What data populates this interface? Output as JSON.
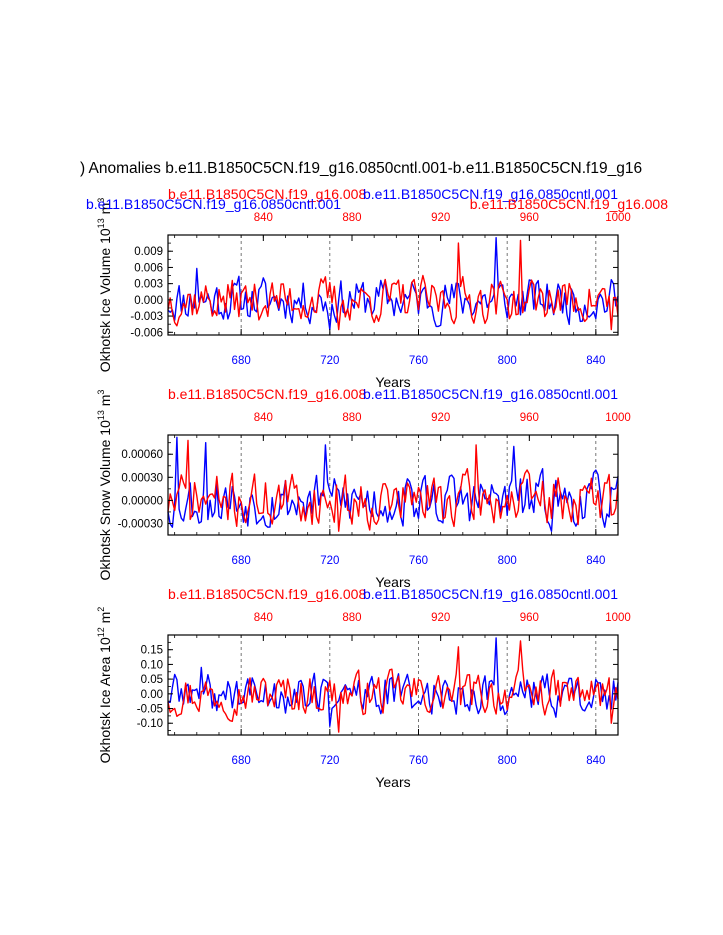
{
  "title": ") Anomalies b.e11.B1850C5CN.f19_g16.0850cntl.001-b.e11.B1850C5CN.f19_g16",
  "colors": {
    "control": "#0000ff",
    "experiment": "#ff0000",
    "axis": "#000000",
    "ref_line": "#555555"
  },
  "chart_data": [
    {
      "type": "line",
      "ylabel": "Okhotsk Ice Volume 10",
      "ylabel_exp": "13",
      "ylabel_unit": " m",
      "ylabel_unit_exp": "3",
      "xlabel": "Years",
      "top_left_label": "b.e11.B1850C5CN.f19_g16.008",
      "top_right_label": "b.e11.B1850C5CN.f19_g16.0850cntl.001",
      "left_label_blue": "b.e11.B1850C5CN.f19_g16.0850cntl.001",
      "right_label_red": "b.e11.B1850C5CN.f19_g16.008",
      "bottom_axis": {
        "range": [
          647,
          850
        ],
        "ticks": [
          "680",
          "720",
          "760",
          "800",
          "840"
        ],
        "tick_values": [
          680,
          720,
          760,
          800,
          840
        ]
      },
      "top_axis": {
        "range": [
          797,
          1000
        ],
        "ticks": [
          "840",
          "880",
          "920",
          "960",
          "1000"
        ],
        "tick_values": [
          840,
          880,
          920,
          960,
          1000
        ]
      },
      "ylim": [
        -0.0065,
        0.012
      ],
      "yticks": [
        "-0.006",
        "-0.003",
        "0.000",
        "0.003",
        "0.006",
        "0.009"
      ],
      "ytick_values": [
        -0.006,
        -0.003,
        0.0,
        0.003,
        0.006,
        0.009
      ],
      "ref_lines_x": [
        680,
        720,
        760,
        800,
        840
      ],
      "series": [
        {
          "name": "b.e11.B1850C5CN.f19_g16.0850cntl.001",
          "color": "blue",
          "amplitude": 0.0026,
          "seed": 11,
          "spikes": [
            [
              795,
              0.0115
            ],
            [
              660,
              0.0058
            ],
            [
              720,
              -0.0055
            ]
          ]
        },
        {
          "name": "b.e11.B1850C5CN.f19_g16.008",
          "color": "red",
          "amplitude": 0.0026,
          "seed": 37,
          "spikes": [
            [
              778,
              0.0105
            ],
            [
              806,
              0.011
            ],
            [
              724,
              -0.0055
            ],
            [
              847,
              -0.0055
            ]
          ]
        }
      ]
    },
    {
      "type": "line",
      "ylabel": "Okhotsk Snow Volume 10",
      "ylabel_exp": "13",
      "ylabel_unit": " m",
      "ylabel_unit_exp": "3",
      "xlabel": "Years",
      "top_left_label": "b.e11.B1850C5CN.f19_g16.008",
      "top_right_label": "b.e11.B1850C5CN.f19_g16.0850cntl.001",
      "bottom_axis": {
        "range": [
          647,
          850
        ],
        "ticks": [
          "680",
          "720",
          "760",
          "800",
          "840"
        ],
        "tick_values": [
          680,
          720,
          760,
          800,
          840
        ]
      },
      "top_axis": {
        "range": [
          797,
          1000
        ],
        "ticks": [
          "840",
          "880",
          "920",
          "960",
          "1000"
        ],
        "tick_values": [
          840,
          880,
          920,
          960,
          1000
        ]
      },
      "ylim": [
        -0.00045,
        0.00085
      ],
      "yticks": [
        "-0.00030",
        "0.00000",
        "0.00030",
        "0.00060"
      ],
      "ytick_values": [
        -0.0003,
        0.0,
        0.0003,
        0.0006
      ],
      "ref_lines_x": [
        680,
        720,
        760,
        800,
        840
      ],
      "series": [
        {
          "name": "b.e11.B1850C5CN.f19_g16.0850cntl.001",
          "color": "blue",
          "amplitude": 0.00022,
          "seed": 53,
          "spikes": [
            [
              651,
              0.00082
            ],
            [
              664,
              0.00075
            ],
            [
              718,
              0.00072
            ],
            [
              803,
              0.0007
            ]
          ]
        },
        {
          "name": "b.e11.B1850C5CN.f19_g16.008",
          "color": "red",
          "amplitude": 0.00022,
          "seed": 71,
          "spikes": [
            [
              656,
              0.00078
            ],
            [
              786,
              0.00072
            ],
            [
              724,
              -0.0004
            ]
          ]
        }
      ]
    },
    {
      "type": "line",
      "ylabel": "Okhotsk Ice Area 10",
      "ylabel_exp": "12",
      "ylabel_unit": " m",
      "ylabel_unit_exp": "2",
      "xlabel": "Years",
      "top_left_label": "b.e11.B1850C5CN.f19_g16.008",
      "top_right_label": "b.e11.B1850C5CN.f19_g16.0850cntl.001",
      "bottom_axis": {
        "range": [
          647,
          850
        ],
        "ticks": [
          "680",
          "720",
          "760",
          "800",
          "840"
        ],
        "tick_values": [
          680,
          720,
          760,
          800,
          840
        ]
      },
      "top_axis": {
        "range": [
          797,
          1000
        ],
        "ticks": [
          "840",
          "880",
          "920",
          "960",
          "1000"
        ],
        "tick_values": [
          840,
          880,
          920,
          960,
          1000
        ]
      },
      "ylim": [
        -0.14,
        0.2
      ],
      "yticks": [
        "-0.10",
        "-0.05",
        "0.00",
        "0.05",
        "0.10",
        "0.15"
      ],
      "ytick_values": [
        -0.1,
        -0.05,
        0.0,
        0.05,
        0.1,
        0.15
      ],
      "ref_lines_x": [
        680,
        720,
        760,
        800,
        840
      ],
      "series": [
        {
          "name": "b.e11.B1850C5CN.f19_g16.0850cntl.001",
          "color": "blue",
          "amplitude": 0.045,
          "seed": 89,
          "spikes": [
            [
              795,
              0.19
            ],
            [
              662,
              0.09
            ],
            [
              720,
              -0.11
            ]
          ]
        },
        {
          "name": "b.e11.B1850C5CN.f19_g16.008",
          "color": "red",
          "amplitude": 0.045,
          "seed": 97,
          "spikes": [
            [
              778,
              0.16
            ],
            [
              806,
              0.18
            ],
            [
              724,
              -0.13
            ],
            [
              847,
              -0.1
            ]
          ]
        }
      ]
    }
  ]
}
